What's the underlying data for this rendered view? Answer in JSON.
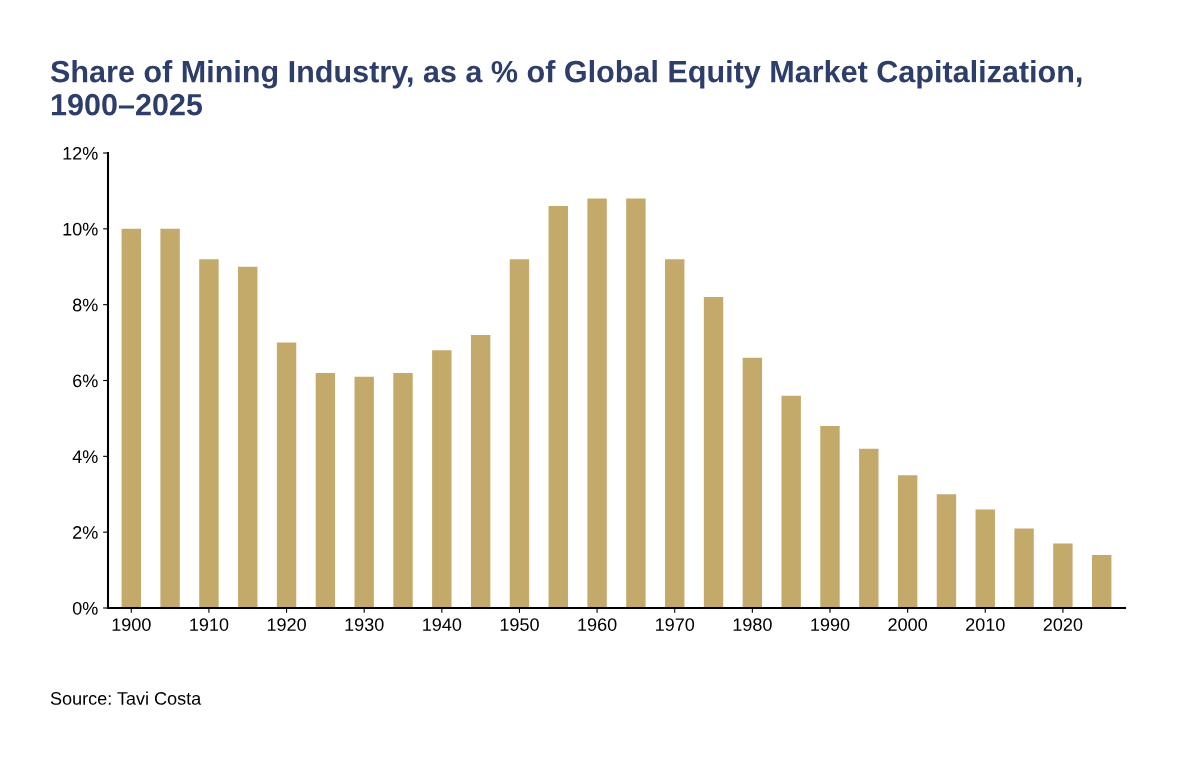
{
  "chart_data": {
    "type": "bar",
    "title": "Share of Mining Industry, as a % of Global Equity Market Capitalization, 1900–2025",
    "categories": [
      "1900",
      null,
      "1910",
      null,
      "1920",
      null,
      "1930",
      null,
      "1940",
      null,
      "1950",
      null,
      "1960",
      null,
      "1970",
      null,
      "1980",
      null,
      "1990",
      null,
      "2000",
      null,
      "2010",
      null,
      "2020",
      null
    ],
    "values": [
      10.0,
      10.0,
      9.2,
      9.0,
      7.0,
      6.2,
      6.1,
      6.2,
      6.8,
      7.2,
      9.2,
      10.6,
      10.8,
      10.8,
      9.2,
      8.2,
      6.6,
      5.6,
      4.8,
      4.2,
      3.5,
      3.0,
      2.6,
      2.1,
      1.7,
      1.4
    ],
    "color": "#c4aa6a",
    "ylim": [
      0,
      12
    ],
    "yticks": [
      {
        "value": 0,
        "label": "0%"
      },
      {
        "value": 2,
        "label": "2%"
      },
      {
        "value": 4,
        "label": "4%"
      },
      {
        "value": 6,
        "label": "6%"
      },
      {
        "value": 8,
        "label": "8%"
      },
      {
        "value": 10,
        "label": "10%"
      },
      {
        "value": 12,
        "label": "12%"
      }
    ],
    "grid": false,
    "annotations": [
      "Source: Tavi Costa"
    ]
  }
}
